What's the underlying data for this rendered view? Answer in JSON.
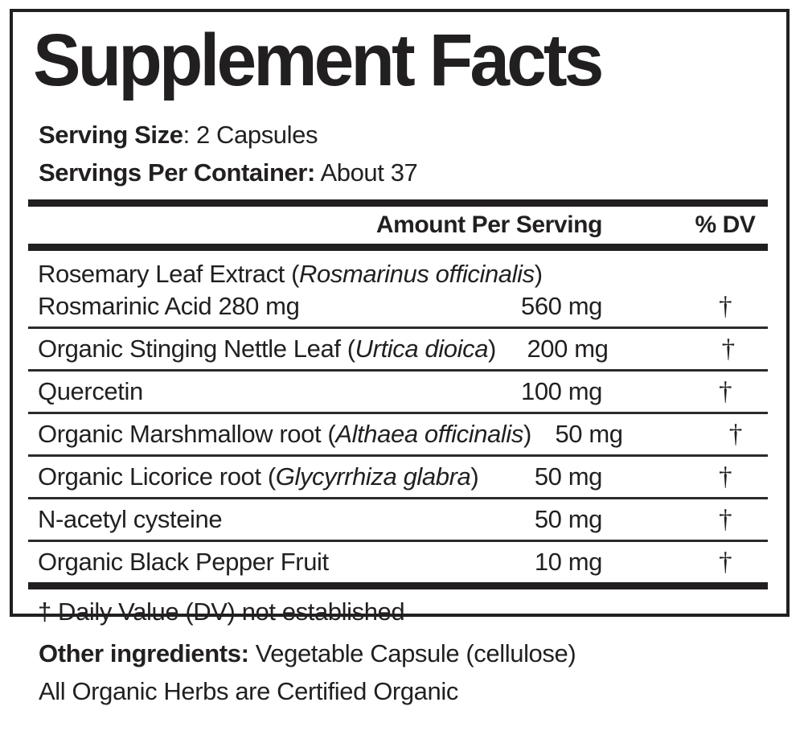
{
  "colors": {
    "ink": "#221f20",
    "background": "#ffffff",
    "thin_rule": "#2d2a2b"
  },
  "label": {
    "title": "Supplement Facts",
    "serving_size": {
      "label": "Serving Size",
      "rest": ": 2 Capsules"
    },
    "servings_per_container": {
      "label": "Servings Per Container:",
      "rest": " About 37"
    },
    "table": {
      "headers": {
        "amount": "Amount Per Serving",
        "dv": "% DV"
      },
      "rows": [
        {
          "line1": {
            "prefix": "Rosemary Leaf Extract (",
            "italic": "Rosmarinus officinalis",
            "suffix": ")"
          },
          "name": {
            "prefix": "Rosmarinic Acid 280 mg",
            "italic": "",
            "suffix": ""
          },
          "amount": "560 mg",
          "dv": "†"
        },
        {
          "name": {
            "prefix": "Organic Stinging Nettle Leaf (",
            "italic": "Urtica dioica",
            "suffix": ")"
          },
          "amount": "200 mg",
          "dv": "†"
        },
        {
          "name": {
            "prefix": "Quercetin",
            "italic": "",
            "suffix": ""
          },
          "amount": "100 mg",
          "dv": "†"
        },
        {
          "name": {
            "prefix": "Organic Marshmallow root (",
            "italic": "Althaea officinalis",
            "suffix": ")"
          },
          "amount": "50 mg",
          "dv": "†"
        },
        {
          "name": {
            "prefix": "Organic Licorice root (",
            "italic": "Glycyrrhiza glabra",
            "suffix": ")"
          },
          "amount": "50 mg",
          "dv": "†"
        },
        {
          "name": {
            "prefix": "N-acetyl cysteine",
            "italic": "",
            "suffix": ""
          },
          "amount": "50 mg",
          "dv": "†"
        },
        {
          "name": {
            "prefix": "Organic Black Pepper Fruit",
            "italic": "",
            "suffix": ""
          },
          "amount": "10 mg",
          "dv": "†"
        }
      ],
      "footnote": "† Daily Value (DV) not established"
    },
    "other_ingredients": {
      "label": "Other ingredients:",
      "rest": " Vegetable Capsule (cellulose)"
    },
    "organic_note": "All Organic Herbs are Certified Organic"
  }
}
